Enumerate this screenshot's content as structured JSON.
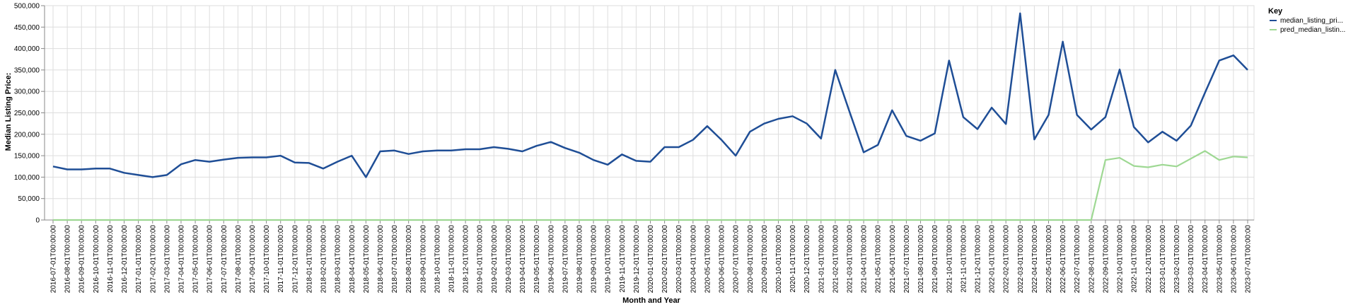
{
  "chart_data": {
    "type": "line",
    "xlabel": "Month and Year",
    "ylabel": "Median Listing Price:",
    "ylim": [
      0,
      500000
    ],
    "yticks": [
      "0",
      "50,000",
      "100,000",
      "150,000",
      "200,000",
      "250,000",
      "300,000",
      "350,000",
      "400,000",
      "450,000",
      "500,000"
    ],
    "grid": true,
    "legend": {
      "title": "Key",
      "placement": "top-right"
    },
    "x": [
      "2016-07-01T00:00:00",
      "2016-08-01T00:00:00",
      "2016-09-01T00:00:00",
      "2016-10-01T00:00:00",
      "2016-11-01T00:00:00",
      "2016-12-01T00:00:00",
      "2017-01-01T00:00:00",
      "2017-02-01T00:00:00",
      "2017-03-01T00:00:00",
      "2017-04-01T00:00:00",
      "2017-05-01T00:00:00",
      "2017-06-01T00:00:00",
      "2017-07-01T00:00:00",
      "2017-08-01T00:00:00",
      "2017-09-01T00:00:00",
      "2017-10-01T00:00:00",
      "2017-11-01T00:00:00",
      "2017-12-01T00:00:00",
      "2018-01-01T00:00:00",
      "2018-02-01T00:00:00",
      "2018-03-01T00:00:00",
      "2018-04-01T00:00:00",
      "2018-05-01T00:00:00",
      "2018-06-01T00:00:00",
      "2018-07-01T00:00:00",
      "2018-08-01T00:00:00",
      "2018-09-01T00:00:00",
      "2018-10-01T00:00:00",
      "2018-11-01T00:00:00",
      "2018-12-01T00:00:00",
      "2019-01-01T00:00:00",
      "2019-02-01T00:00:00",
      "2019-03-01T00:00:00",
      "2019-04-01T00:00:00",
      "2019-05-01T00:00:00",
      "2019-06-01T00:00:00",
      "2019-07-01T00:00:00",
      "2019-08-01T00:00:00",
      "2019-09-01T00:00:00",
      "2019-10-01T00:00:00",
      "2019-11-01T00:00:00",
      "2019-12-01T00:00:00",
      "2020-01-01T00:00:00",
      "2020-02-01T00:00:00",
      "2020-03-01T00:00:00",
      "2020-04-01T00:00:00",
      "2020-05-01T00:00:00",
      "2020-06-01T00:00:00",
      "2020-07-01T00:00:00",
      "2020-08-01T00:00:00",
      "2020-09-01T00:00:00",
      "2020-10-01T00:00:00",
      "2020-11-01T00:00:00",
      "2020-12-01T00:00:00",
      "2021-01-01T00:00:00",
      "2021-02-01T00:00:00",
      "2021-03-01T00:00:00",
      "2021-04-01T00:00:00",
      "2021-05-01T00:00:00",
      "2021-06-01T00:00:00",
      "2021-07-01T00:00:00",
      "2021-08-01T00:00:00",
      "2021-09-01T00:00:00",
      "2021-10-01T00:00:00",
      "2021-11-01T00:00:00",
      "2021-12-01T00:00:00",
      "2022-01-01T00:00:00",
      "2022-02-01T00:00:00",
      "2022-03-01T00:00:00",
      "2022-04-01T00:00:00",
      "2022-05-01T00:00:00",
      "2022-06-01T00:00:00",
      "2022-07-01T00:00:00",
      "2022-08-01T00:00:00",
      "2022-09-01T00:00:00",
      "2022-10-01T00:00:00",
      "2022-11-01T00:00:00",
      "2022-12-01T00:00:00",
      "2023-01-01T00:00:00",
      "2023-02-01T00:00:00",
      "2023-03-01T00:00:00",
      "2023-04-01T00:00:00",
      "2023-05-01T00:00:00",
      "2023-06-01T00:00:00",
      "2023-07-01T00:00:00"
    ],
    "series": [
      {
        "name": "median_listing_pri...",
        "color": "#1f4e96",
        "values": [
          125000,
          118000,
          118000,
          120000,
          120000,
          110000,
          105000,
          100000,
          105000,
          130000,
          140000,
          136000,
          141000,
          145000,
          146000,
          146000,
          150000,
          134000,
          133000,
          120000,
          136000,
          150000,
          100000,
          160000,
          162000,
          154000,
          160000,
          162000,
          162000,
          165000,
          165000,
          170000,
          166000,
          160000,
          173000,
          182000,
          168000,
          157000,
          140000,
          129000,
          153000,
          138000,
          136000,
          170000,
          170000,
          187000,
          219000,
          187000,
          150000,
          206000,
          225000,
          236000,
          242000,
          225000,
          190000,
          350000,
          253000,
          158000,
          175000,
          256000,
          196000,
          185000,
          202000,
          372000,
          240000,
          212000,
          262000,
          224000,
          482000,
          188000,
          245000,
          416000,
          245000,
          211000,
          240000,
          351000,
          217000,
          181000,
          206000,
          185000,
          220000,
          297000,
          372000,
          384000,
          350000
        ]
      },
      {
        "name": "pred_median_listin...",
        "color": "#9ed893",
        "values": [
          0,
          0,
          0,
          0,
          0,
          0,
          0,
          0,
          0,
          0,
          0,
          0,
          0,
          0,
          0,
          0,
          0,
          0,
          0,
          0,
          0,
          0,
          0,
          0,
          0,
          0,
          0,
          0,
          0,
          0,
          0,
          0,
          0,
          0,
          0,
          0,
          0,
          0,
          0,
          0,
          0,
          0,
          0,
          0,
          0,
          0,
          0,
          0,
          0,
          0,
          0,
          0,
          0,
          0,
          0,
          0,
          0,
          0,
          0,
          0,
          0,
          0,
          0,
          0,
          0,
          0,
          0,
          0,
          0,
          0,
          0,
          0,
          0,
          0,
          140000,
          145000,
          126000,
          123000,
          129000,
          125000,
          143000,
          161000,
          140000,
          148000,
          146000
        ]
      }
    ]
  }
}
